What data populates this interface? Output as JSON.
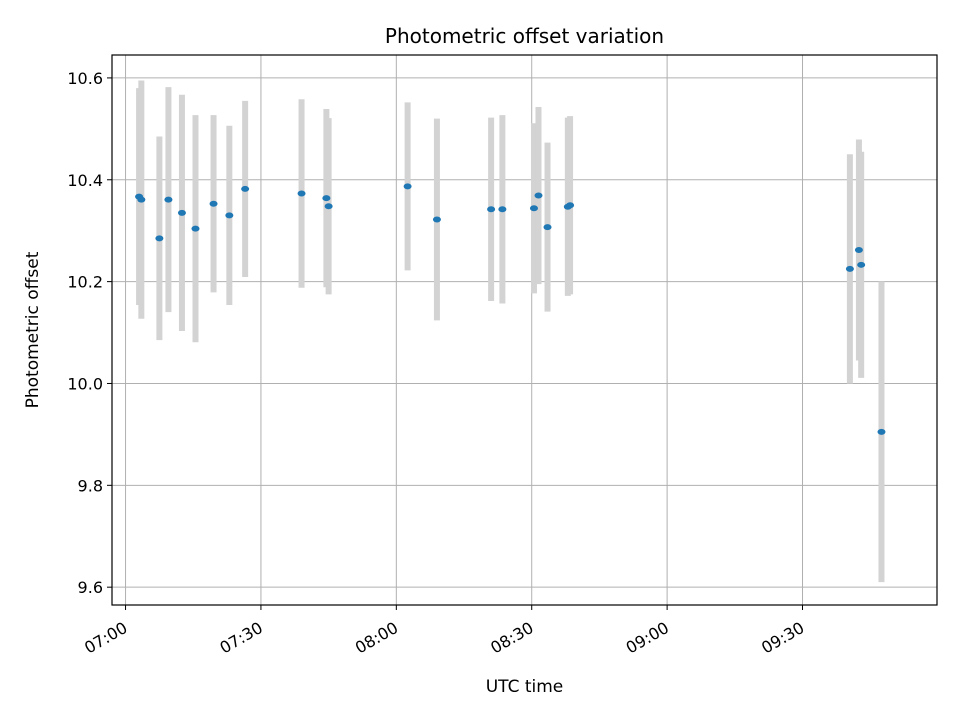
{
  "chart_data": {
    "type": "scatter",
    "title": "Photometric offset variation",
    "xlabel": "UTC time",
    "ylabel": "Photometric offset",
    "x_ticks": [
      "07:00",
      "07:30",
      "08:00",
      "08:30",
      "09:00",
      "09:30"
    ],
    "y_ticks": [
      "9.6",
      "9.8",
      "10.0",
      "10.2",
      "10.4",
      "10.6"
    ],
    "xlim": [
      "06:57:00",
      "09:59:48"
    ],
    "ylim": [
      9.565,
      10.645
    ],
    "grid": true,
    "point_color": "#1f77b4",
    "errorbar_color": "#d3d3d3",
    "points": [
      {
        "t": "07:03:00",
        "y": 10.367,
        "err": 0.213
      },
      {
        "t": "07:03:30",
        "y": 10.361,
        "err": 0.234
      },
      {
        "t": "07:07:30",
        "y": 10.285,
        "err": 0.2
      },
      {
        "t": "07:09:30",
        "y": 10.361,
        "err": 0.221
      },
      {
        "t": "07:12:30",
        "y": 10.335,
        "err": 0.232
      },
      {
        "t": "07:15:30",
        "y": 10.304,
        "err": 0.223
      },
      {
        "t": "07:19:30",
        "y": 10.353,
        "err": 0.174
      },
      {
        "t": "07:23:00",
        "y": 10.33,
        "err": 0.176
      },
      {
        "t": "07:26:30",
        "y": 10.382,
        "err": 0.173
      },
      {
        "t": "07:39:00",
        "y": 10.373,
        "err": 0.185
      },
      {
        "t": "07:44:30",
        "y": 10.364,
        "err": 0.175
      },
      {
        "t": "07:45:00",
        "y": 10.348,
        "err": 0.173
      },
      {
        "t": "08:02:30",
        "y": 10.387,
        "err": 0.165
      },
      {
        "t": "08:09:00",
        "y": 10.322,
        "err": 0.198
      },
      {
        "t": "08:21:00",
        "y": 10.342,
        "err": 0.18
      },
      {
        "t": "08:23:30",
        "y": 10.342,
        "err": 0.185
      },
      {
        "t": "08:30:30",
        "y": 10.344,
        "err": 0.167
      },
      {
        "t": "08:31:30",
        "y": 10.369,
        "err": 0.174
      },
      {
        "t": "08:33:30",
        "y": 10.307,
        "err": 0.166
      },
      {
        "t": "08:38:00",
        "y": 10.347,
        "err": 0.175
      },
      {
        "t": "08:38:30",
        "y": 10.35,
        "err": 0.175
      },
      {
        "t": "09:40:30",
        "y": 10.225,
        "err": 0.225
      },
      {
        "t": "09:42:30",
        "y": 10.262,
        "err": 0.217
      },
      {
        "t": "09:43:00",
        "y": 10.233,
        "err": 0.222
      },
      {
        "t": "09:47:30",
        "y": 9.905,
        "err": 0.295
      }
    ]
  }
}
